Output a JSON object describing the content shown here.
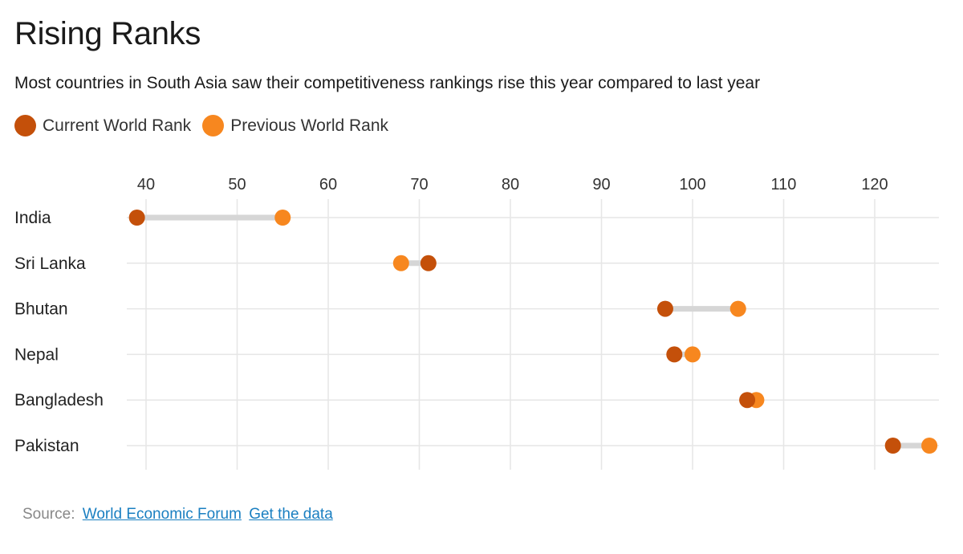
{
  "header": {
    "title": "Rising Ranks",
    "subtitle": "Most countries in South Asia saw their competitiveness rankings rise this year compared to last year"
  },
  "legend": {
    "current_label": "Current World Rank",
    "previous_label": "Previous World Rank"
  },
  "colors": {
    "current": "#c4500a",
    "previous": "#f7871f",
    "connector": "#d6d6d6",
    "grid": "#e6e6e6"
  },
  "source": {
    "label": "Source:",
    "link1": "World Economic Forum",
    "link2": "Get the data"
  },
  "chart_data": {
    "type": "dumbbell",
    "title": "Rising Ranks",
    "xlabel": "",
    "ylabel": "",
    "xlim": [
      38,
      127
    ],
    "ticks": [
      40,
      50,
      60,
      70,
      80,
      90,
      100,
      110,
      120
    ],
    "categories": [
      "India",
      "Sri Lanka",
      "Bhutan",
      "Nepal",
      "Bangladesh",
      "Pakistan"
    ],
    "series": [
      {
        "name": "Current World Rank",
        "values": [
          39,
          71,
          97,
          98,
          106,
          122
        ]
      },
      {
        "name": "Previous World Rank",
        "values": [
          55,
          68,
          105,
          100,
          107,
          126
        ]
      }
    ]
  }
}
